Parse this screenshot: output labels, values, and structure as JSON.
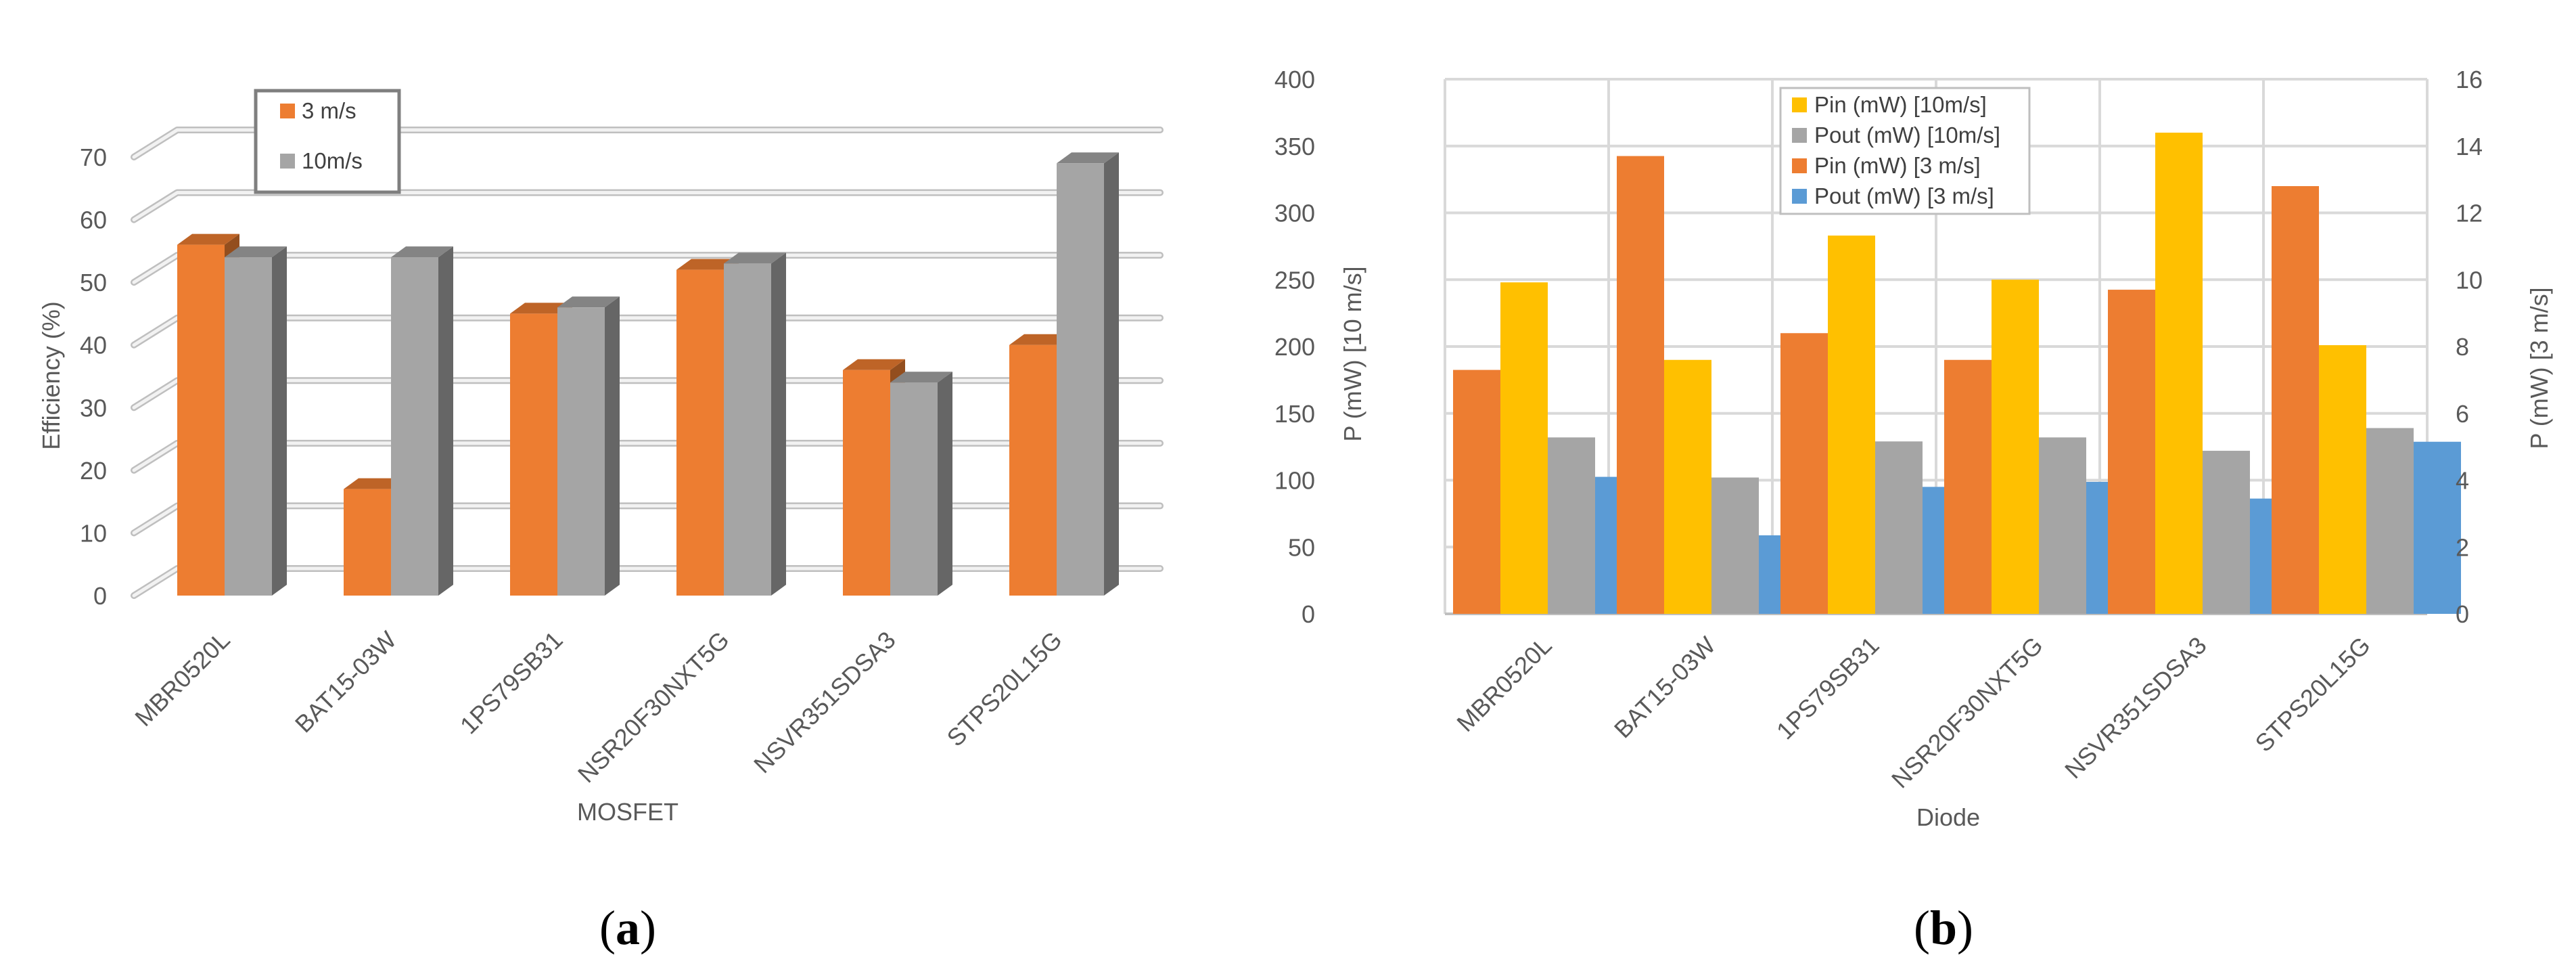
{
  "panels": [
    {
      "label_open": "(",
      "label_letter": "a",
      "label_close": ")"
    },
    {
      "label_open": "(",
      "label_letter": "b",
      "label_close": ")"
    }
  ],
  "chart_data": [
    {
      "type": "bar",
      "style": "3d-clustered-column",
      "title": "",
      "xlabel": "MOSFET",
      "ylabel": "Efficiency (%)",
      "ylim": [
        0,
        70
      ],
      "yticks": [
        0,
        10,
        20,
        30,
        40,
        50,
        60,
        70
      ],
      "grid": true,
      "legend_position": "top-left",
      "categories": [
        "MBR0520L",
        "BAT15-03W",
        "1PS79SB31",
        "NSR20F30NXT5G",
        "NSVR351SDSA3",
        "STPS20L15G"
      ],
      "series": [
        {
          "name": "3 m/s",
          "color": "#ED7D31",
          "values": [
            56,
            17,
            45,
            52,
            36,
            40
          ]
        },
        {
          "name": "10m/s",
          "color": "#A5A5A5",
          "values": [
            54,
            54,
            46,
            53,
            34,
            69
          ]
        }
      ]
    },
    {
      "type": "bar",
      "style": "clustered-column-dual-axis",
      "title": "",
      "xlabel": "Diode",
      "ylabel": "P (mW) [10 m/s]",
      "y2label": "P (mW) [3 m/s]",
      "ylim": [
        0,
        400
      ],
      "yticks": [
        0,
        50,
        100,
        150,
        200,
        250,
        300,
        350,
        400
      ],
      "y2lim": [
        0,
        16
      ],
      "y2ticks": [
        0,
        2,
        4,
        6,
        8,
        10,
        12,
        14,
        16
      ],
      "grid": true,
      "legend_position": "top-center",
      "categories": [
        "MBR0520L",
        "BAT15-03W",
        "1PS79SB31",
        "NSR20F30NXT5G",
        "NSVR351SDSA3",
        "STPS20L15G"
      ],
      "series": [
        {
          "name": "Pin (mW) [3 m/s]",
          "axis": "right",
          "color": "#ED7D31",
          "order": 0,
          "values": [
            7.3,
            13.7,
            8.4,
            7.6,
            9.7,
            12.8
          ]
        },
        {
          "name": "Pin (mW) [10m/s]",
          "axis": "left",
          "color": "#FFC000",
          "order": 1,
          "values": [
            248,
            190,
            283,
            250,
            360,
            201
          ]
        },
        {
          "name": "Pout (mW) [10m/s]",
          "axis": "left",
          "color": "#A5A5A5",
          "order": 2,
          "values": [
            132,
            102,
            129,
            132,
            122,
            139
          ]
        },
        {
          "name": "Pout (mW) [3 m/s]",
          "axis": "right",
          "color": "#5B9BD5",
          "order": 3,
          "values": [
            4.1,
            2.35,
            3.8,
            3.95,
            3.45,
            5.15
          ]
        }
      ],
      "legend_order": [
        "Pin (mW) [10m/s]",
        "Pout (mW) [10m/s]",
        "Pin (mW) [3 m/s]",
        "Pout (mW) [3 m/s]"
      ]
    }
  ]
}
